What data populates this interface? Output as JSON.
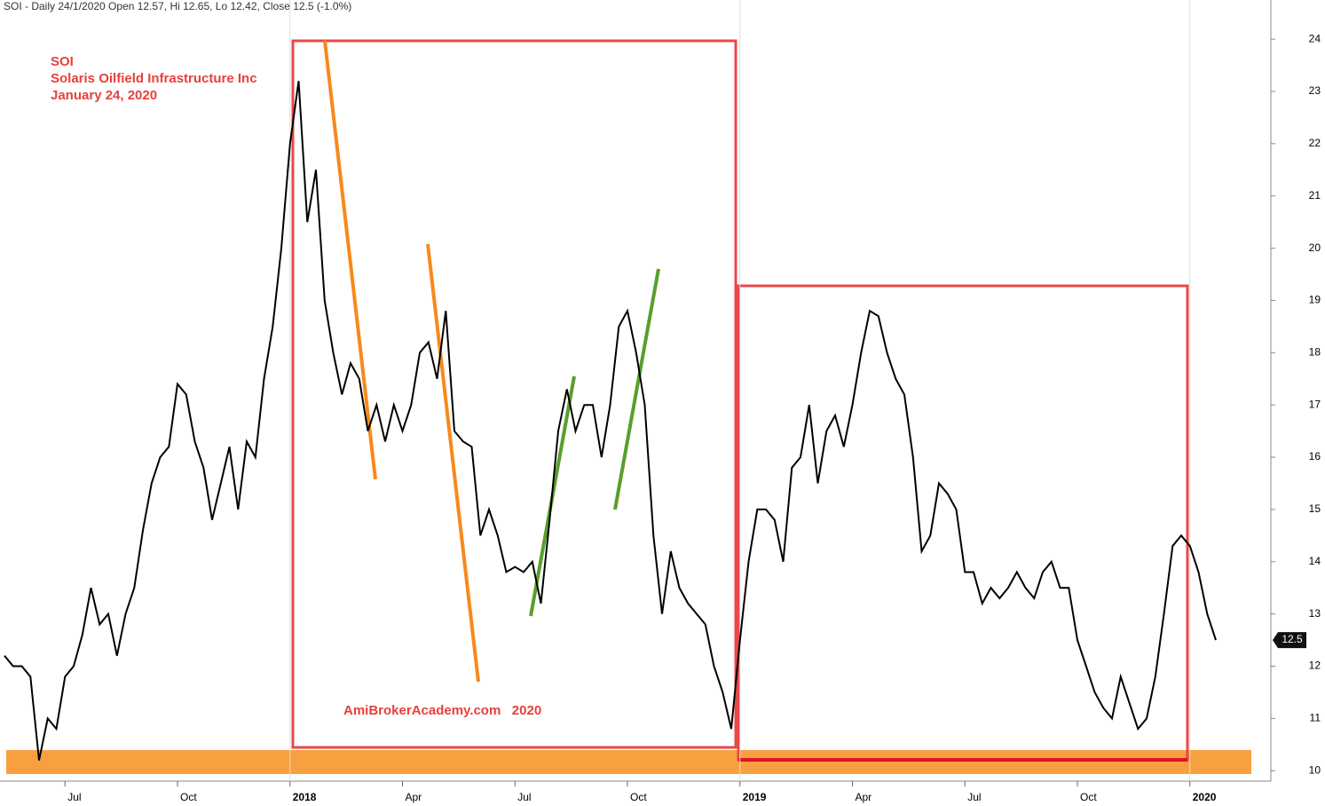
{
  "chart_data": {
    "type": "line",
    "title": "SOI - Daily 24/1/2020 Open 12.57, Hi 12.65, Lo 12.42, Close 12.5 (-1.0%)",
    "annotations": [
      "SOI",
      "Solaris Oilfield Infrastructure Inc",
      "January 24, 2020",
      "AmiBrokerAcademy.com   2020"
    ],
    "color": "#000000",
    "categories": [
      null,
      null,
      null,
      null,
      null,
      null,
      null,
      "Jul",
      null,
      null,
      null,
      null,
      null,
      null,
      null,
      null,
      null,
      null,
      null,
      null,
      "Oct",
      null,
      null,
      null,
      null,
      null,
      null,
      null,
      null,
      null,
      null,
      null,
      null,
      "2018",
      null,
      null,
      null,
      null,
      null,
      null,
      null,
      null,
      null,
      null,
      null,
      null,
      "Apr",
      null,
      null,
      null,
      null,
      null,
      null,
      null,
      null,
      null,
      null,
      null,
      null,
      "Jul",
      null,
      null,
      null,
      null,
      null,
      null,
      null,
      null,
      null,
      null,
      null,
      null,
      "Oct",
      null,
      null,
      null,
      null,
      null,
      null,
      null,
      null,
      null,
      null,
      null,
      null,
      "2019",
      null,
      null,
      null,
      null,
      null,
      null,
      null,
      null,
      null,
      null,
      null,
      null,
      "Apr",
      null,
      null,
      null,
      null,
      null,
      null,
      null,
      null,
      null,
      null,
      null,
      null,
      "Jul",
      null,
      null,
      null,
      null,
      null,
      null,
      null,
      null,
      null,
      null,
      null,
      null,
      "Oct",
      null,
      null,
      null,
      null,
      null,
      null,
      null,
      null,
      null,
      null,
      null,
      null,
      "2020",
      null,
      null,
      null
    ],
    "values": [
      12.2,
      12.0,
      12.0,
      11.8,
      10.2,
      11.0,
      10.8,
      11.8,
      12.0,
      12.6,
      13.5,
      12.8,
      13.0,
      12.2,
      13.0,
      13.5,
      14.6,
      15.5,
      16.0,
      16.2,
      17.4,
      17.2,
      16.3,
      15.8,
      14.8,
      15.5,
      16.2,
      15.0,
      16.3,
      16.0,
      17.5,
      18.5,
      20.0,
      22.0,
      23.2,
      20.5,
      21.5,
      19.0,
      18.0,
      17.2,
      17.8,
      17.5,
      16.5,
      17.0,
      16.3,
      17.0,
      16.5,
      17.0,
      18.0,
      18.2,
      17.5,
      18.8,
      16.5,
      16.3,
      16.2,
      14.5,
      15.0,
      14.5,
      13.8,
      13.9,
      13.8,
      14.0,
      13.2,
      14.8,
      16.5,
      17.3,
      16.5,
      17.0,
      17.0,
      16.0,
      17.0,
      18.5,
      18.8,
      18.0,
      17.0,
      14.5,
      13.0,
      14.2,
      13.5,
      13.2,
      13.0,
      12.8,
      12.0,
      11.5,
      10.8,
      12.5,
      14.0,
      15.0,
      15.0,
      14.8,
      14.0,
      15.8,
      16.0,
      17.0,
      15.5,
      16.5,
      16.8,
      16.2,
      17.0,
      18.0,
      18.8,
      18.7,
      18.0,
      17.5,
      17.2,
      16.0,
      14.2,
      14.5,
      15.5,
      15.3,
      15.0,
      13.8,
      13.8,
      13.2,
      13.5,
      13.3,
      13.5,
      13.8,
      13.5,
      13.3,
      13.8,
      14.0,
      13.5,
      13.5,
      12.5,
      12.0,
      11.5,
      11.2,
      11.0,
      11.8,
      11.3,
      10.8,
      11.0,
      11.8,
      13.0,
      14.3,
      14.5,
      14.3,
      13.8,
      13.0,
      12.5
    ],
    "ylim": [
      9.8,
      24.75
    ],
    "yticks": [
      10,
      11,
      12,
      13,
      14,
      15,
      16,
      17,
      18,
      19,
      20,
      21,
      22,
      23,
      24
    ]
  }
}
